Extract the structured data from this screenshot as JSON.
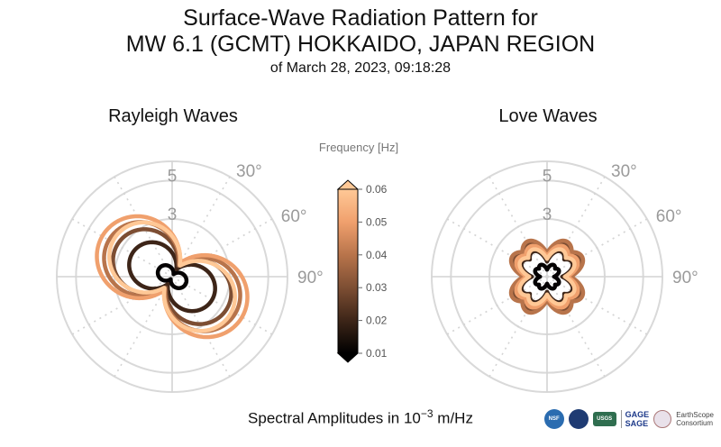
{
  "title": {
    "line1": "Surface-Wave Radiation Pattern for",
    "line2": "MW 6.1 (GCMT) HOKKAIDO, JAPAN REGION",
    "line3": "of March 28, 2023, 09:18:28"
  },
  "footer": {
    "text_before": "Spectral Amplitudes in ",
    "base": "10",
    "exponent": "−3",
    "text_after": " m/Hz"
  },
  "logos": {
    "nsf": "NSF",
    "usgs": "USGS",
    "gage": "GAGE",
    "sage": "SAGE",
    "earthscope_1": "EarthScope",
    "earthscope_2": "Consortium"
  },
  "chart_data": [
    {
      "type": "polar",
      "title": "Rayleigh Waves",
      "radial_ticks": [
        "3",
        "5"
      ],
      "radial_tick_values": [
        3,
        5
      ],
      "rmax": 6,
      "angle_ticks": [
        "30°",
        "60°",
        "90°"
      ],
      "angle_tick_values": [
        30,
        60,
        90
      ],
      "series": [
        {
          "frequency": 0.01,
          "color": "#050203",
          "lobe_max": 0.8,
          "lobe_min": 0.15,
          "azimuth_max": 120
        },
        {
          "frequency": 0.02,
          "color": "#3d2518",
          "lobe_max": 2.4,
          "lobe_min": 0.45,
          "azimuth_max": 120
        },
        {
          "frequency": 0.03,
          "color": "#7d4e33",
          "lobe_max": 3.3,
          "lobe_min": 0.65,
          "azimuth_max": 120
        },
        {
          "frequency": 0.04,
          "color": "#b8744b",
          "lobe_max": 3.8,
          "lobe_min": 0.75,
          "azimuth_max": 120
        },
        {
          "frequency": 0.05,
          "color": "#f0a06d",
          "lobe_max": 4.2,
          "lobe_min": 0.85,
          "azimuth_max": 120
        },
        {
          "frequency": 0.06,
          "color": "#ffc896",
          "lobe_max": 3.6,
          "lobe_min": 0.7,
          "azimuth_max": 125
        }
      ]
    },
    {
      "type": "polar",
      "title": "Love Waves",
      "radial_ticks": [
        "3",
        "5"
      ],
      "radial_tick_values": [
        3,
        5
      ],
      "rmax": 6,
      "angle_ticks": [
        "30°",
        "60°",
        "90°"
      ],
      "angle_tick_values": [
        30,
        60,
        90
      ],
      "series": [
        {
          "frequency": 0.01,
          "color": "#050203",
          "lobe_max": 0.7,
          "lobe_min": 0.25
        },
        {
          "frequency": 0.02,
          "color": "#3d2518",
          "lobe_max": 1.5,
          "lobe_min": 0.55
        },
        {
          "frequency": 0.03,
          "color": "#7d4e33",
          "lobe_max": 1.9,
          "lobe_min": 0.8
        },
        {
          "frequency": 0.04,
          "color": "#b8744b",
          "lobe_max": 2.1,
          "lobe_min": 0.95
        },
        {
          "frequency": 0.05,
          "color": "#f0a06d",
          "lobe_max": 1.8,
          "lobe_min": 0.8
        },
        {
          "frequency": 0.06,
          "color": "#ffc896",
          "lobe_max": 1.6,
          "lobe_min": 0.7
        }
      ]
    }
  ],
  "colorbar": {
    "label": "Frequency [Hz]",
    "ticks": [
      "0.01",
      "0.02",
      "0.03",
      "0.04",
      "0.05",
      "0.06"
    ],
    "tick_values": [
      0.01,
      0.02,
      0.03,
      0.04,
      0.05,
      0.06
    ],
    "range": [
      0.01,
      0.06
    ],
    "colors": [
      "#000000",
      "#3d2518",
      "#7d4e33",
      "#b8744b",
      "#f0a06d",
      "#ffc896"
    ]
  }
}
